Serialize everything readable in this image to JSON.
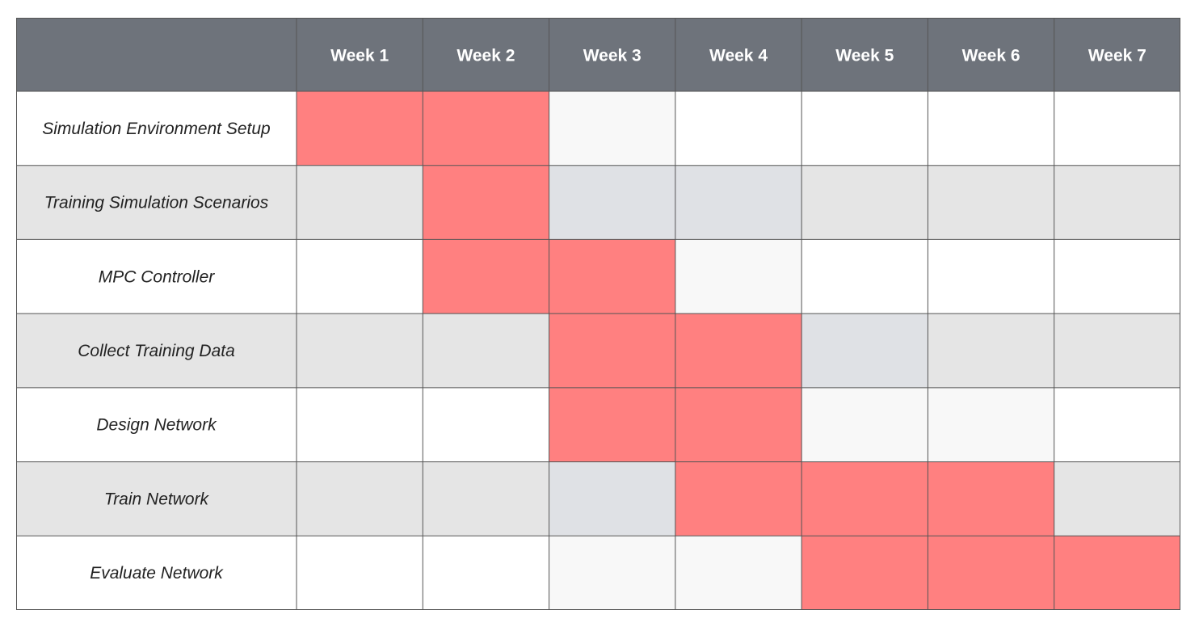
{
  "chart_data": {
    "type": "table",
    "columns": [
      "Week 1",
      "Week 2",
      "Week 3",
      "Week 4",
      "Week 5",
      "Week 6",
      "Week 7"
    ],
    "tasks": [
      {
        "name": "Simulation Environment Setup",
        "start_week": 1,
        "end_week": 2,
        "slack_weeks": [
          3
        ]
      },
      {
        "name": "Training Simulation Scenarios",
        "start_week": 2,
        "end_week": 2,
        "slack_weeks": [
          3,
          4
        ]
      },
      {
        "name": "MPC Controller",
        "start_week": 2,
        "end_week": 3,
        "slack_weeks": [
          4
        ]
      },
      {
        "name": "Collect Training Data",
        "start_week": 3,
        "end_week": 4,
        "slack_weeks": [
          5
        ]
      },
      {
        "name": "Design Network",
        "start_week": 3,
        "end_week": 4,
        "slack_weeks": [
          5,
          6
        ]
      },
      {
        "name": "Train Network",
        "start_week": 4,
        "end_week": 6,
        "slack_weeks": [
          3
        ]
      },
      {
        "name": "Evaluate Network",
        "start_week": 5,
        "end_week": 7,
        "slack_weeks": [
          3,
          4
        ]
      }
    ],
    "colors": {
      "header": "#6e737b",
      "bar": "#ff8080",
      "row_light": "#ffffff",
      "row_dark": "#e5e5e5",
      "slack_light": "#f8f8f8",
      "slack_dark": "#dfe1e5",
      "grid": "#555555"
    }
  }
}
